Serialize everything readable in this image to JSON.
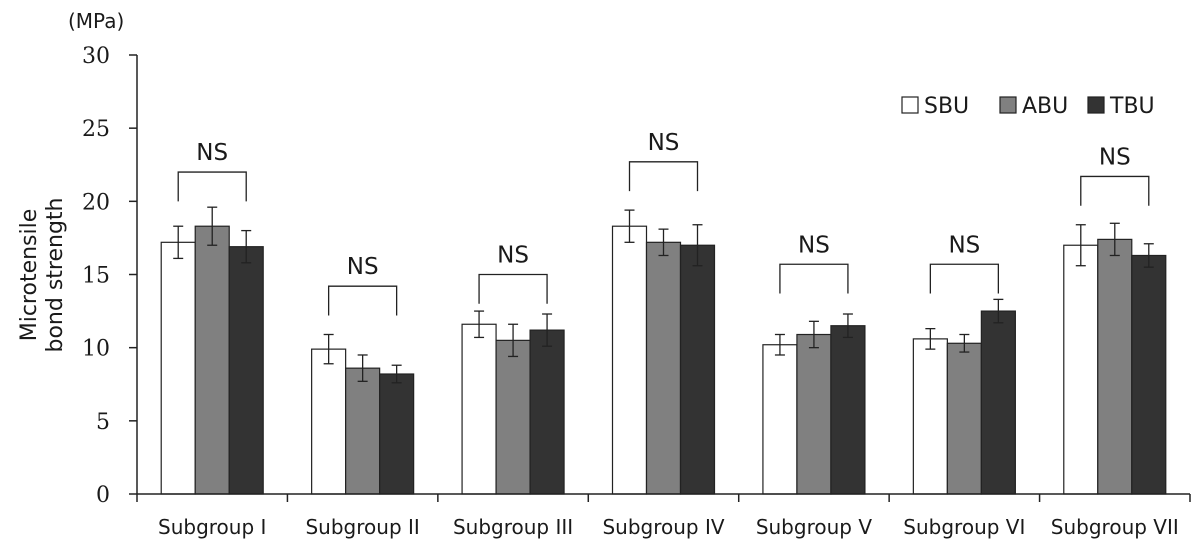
{
  "chart_data": {
    "type": "bar",
    "unit": "(MPa)",
    "ylabel_lines": [
      "Microtensile",
      "bond strength"
    ],
    "ylim": [
      0,
      30
    ],
    "yticks": [
      0,
      5,
      10,
      15,
      20,
      25,
      30
    ],
    "categories": [
      "Subgroup I",
      "Subgroup II",
      "Subgroup III",
      "Subgroup IV",
      "Subgroup V",
      "Subgroup VI",
      "Subgroup VII"
    ],
    "series": [
      {
        "name": "SBU",
        "color": "#ffffff",
        "values": [
          17.2,
          9.9,
          11.6,
          18.3,
          10.2,
          10.6,
          17.0
        ],
        "errors": [
          1.1,
          1.0,
          0.9,
          1.1,
          0.7,
          0.7,
          1.4
        ]
      },
      {
        "name": "ABU",
        "color": "#808080",
        "values": [
          18.3,
          8.6,
          10.5,
          17.2,
          10.9,
          10.3,
          17.4
        ],
        "errors": [
          1.3,
          0.9,
          1.1,
          0.9,
          0.9,
          0.6,
          1.1
        ]
      },
      {
        "name": "TBU",
        "color": "#333333",
        "values": [
          16.9,
          8.2,
          11.2,
          17.0,
          11.5,
          12.5,
          16.3
        ],
        "errors": [
          1.1,
          0.6,
          1.1,
          1.4,
          0.8,
          0.8,
          0.8
        ]
      }
    ],
    "annotations": [
      {
        "category": "Subgroup I",
        "text": "NS",
        "level": 22.0
      },
      {
        "category": "Subgroup II",
        "text": "NS",
        "level": 14.2
      },
      {
        "category": "Subgroup III",
        "text": "NS",
        "level": 15.0
      },
      {
        "category": "Subgroup IV",
        "text": "NS",
        "level": 22.7
      },
      {
        "category": "Subgroup V",
        "text": "NS",
        "level": 15.7
      },
      {
        "category": "Subgroup VI",
        "text": "NS",
        "level": 15.7
      },
      {
        "category": "Subgroup VII",
        "text": "NS",
        "level": 21.7
      }
    ],
    "legend_position": "top-right"
  }
}
